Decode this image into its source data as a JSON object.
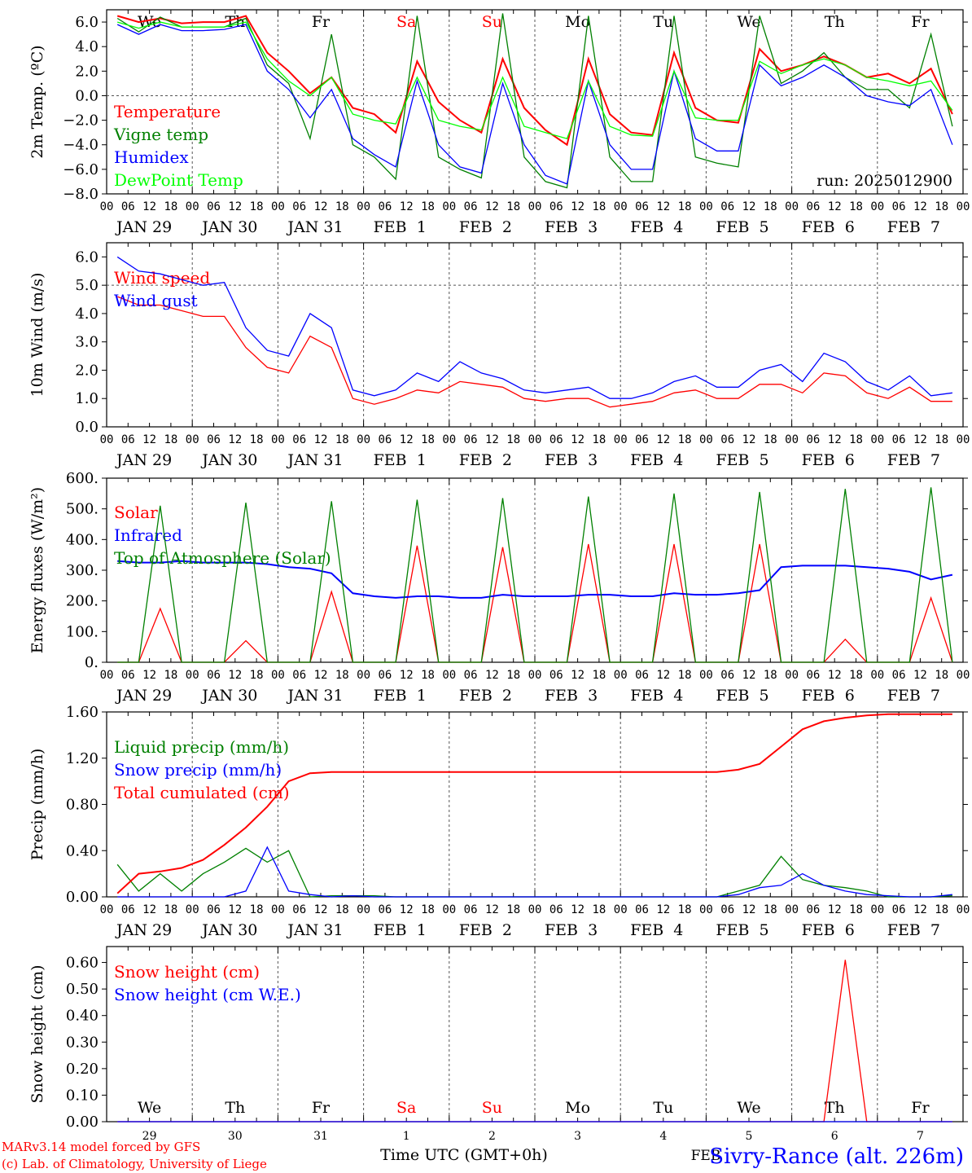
{
  "footer": {
    "model": "MARv3.14 model forced by GFS",
    "lab": "(c) Lab. of Climatology, University of Liege",
    "xlabel": "Time UTC (GMT+0h)",
    "station": "Sivry-Rance (alt. 226m)",
    "month": "FEB"
  },
  "days": [
    "JAN 29",
    "JAN 30",
    "JAN 31",
    "FEB  1",
    "FEB  2",
    "FEB  3",
    "FEB  4",
    "FEB  5",
    "FEB  6",
    "FEB  7"
  ],
  "weekdays": [
    "We",
    "Th",
    "Fr",
    "Sa",
    "Su",
    "Mo",
    "Tu",
    "We",
    "Th",
    "Fr"
  ],
  "weekday_colors": [
    "#000000",
    "#000000",
    "#000000",
    "#ff0000",
    "#ff0000",
    "#000000",
    "#000000",
    "#000000",
    "#000000",
    "#000000"
  ],
  "day_numbers": [
    "29",
    "30",
    "31",
    "1",
    "2",
    "3",
    "4",
    "5",
    "6",
    "7"
  ],
  "hour_ticks": [
    "00",
    "06",
    "12",
    "18"
  ],
  "end_tick": "00",
  "chart_data": [
    {
      "type": "line",
      "ylabel": "2m Temp. (ºC)",
      "ylim": [
        -8,
        7
      ],
      "yticks": [
        "6.0",
        "4.0",
        "2.0",
        "0.0",
        "−2.0",
        "−4.0",
        "−6.0",
        "−8.0"
      ],
      "annotation": "run: 2025012900",
      "time_step_hours": 6,
      "series": [
        {
          "name": "Temperature",
          "color": "#ff0000",
          "values": [
            6.5,
            6.0,
            6.3,
            5.9,
            6.0,
            6.0,
            6.5,
            3.5,
            2.0,
            0.2,
            1.5,
            -1.0,
            -1.5,
            -3.0,
            2.8,
            -0.5,
            -2.0,
            -3.0,
            3.0,
            -1.0,
            -2.8,
            -4.0,
            3.0,
            -1.5,
            -3.0,
            -3.2,
            3.5,
            -1.0,
            -2.0,
            -2.2,
            3.8,
            2.0,
            2.5,
            3.2,
            2.5,
            1.5,
            1.8,
            1.0,
            2.2,
            -1.5
          ]
        },
        {
          "name": "Vigne temp",
          "color": "#008000",
          "values": [
            6.3,
            5.2,
            6.4,
            5.6,
            5.6,
            5.6,
            6.3,
            2.5,
            1.0,
            -3.5,
            5.0,
            -4.0,
            -5.0,
            -6.8,
            6.5,
            -5.0,
            -6.0,
            -6.7,
            6.7,
            -5.0,
            -7.0,
            -7.5,
            6.5,
            -5.0,
            -7.0,
            -7.0,
            6.5,
            -5.0,
            -5.5,
            -5.8,
            6.5,
            1.0,
            2.0,
            3.5,
            1.5,
            0.5,
            0.5,
            -1.0,
            5.0,
            -2.5
          ]
        },
        {
          "name": "Humidex",
          "color": "#0000ff",
          "values": [
            5.8,
            5.0,
            5.8,
            5.3,
            5.3,
            5.4,
            5.8,
            2.0,
            0.5,
            -1.8,
            0.5,
            -3.5,
            -4.8,
            -5.8,
            1.2,
            -4.0,
            -5.8,
            -6.3,
            1.0,
            -4.0,
            -6.5,
            -7.2,
            1.2,
            -4.0,
            -6.0,
            -6.0,
            2.0,
            -3.5,
            -4.5,
            -4.5,
            2.5,
            0.8,
            1.5,
            2.5,
            1.5,
            0.0,
            -0.5,
            -0.8,
            0.5,
            -4.0
          ]
        },
        {
          "name": "DewPoint Temp",
          "color": "#00ff00",
          "values": [
            6.0,
            5.5,
            6.0,
            5.6,
            5.6,
            5.6,
            6.0,
            3.0,
            1.2,
            0.0,
            1.5,
            -1.5,
            -2.0,
            -2.3,
            1.5,
            -2.0,
            -2.5,
            -2.8,
            1.5,
            -2.5,
            -3.0,
            -3.5,
            1.2,
            -2.5,
            -3.2,
            -3.3,
            2.0,
            -1.8,
            -2.0,
            -2.0,
            2.8,
            1.8,
            2.5,
            3.0,
            2.5,
            1.5,
            1.2,
            0.8,
            1.2,
            -1.2
          ]
        }
      ]
    },
    {
      "type": "line",
      "ylabel": "10m Wind (m/s)",
      "ylim": [
        0,
        6.5
      ],
      "yticks": [
        "6.0",
        "5.0",
        "4.0",
        "3.0",
        "2.0",
        "1.0",
        "0.0"
      ],
      "time_step_hours": 6,
      "series": [
        {
          "name": "Wind speed",
          "color": "#ff0000",
          "values": [
            4.6,
            4.3,
            4.3,
            4.1,
            3.9,
            3.9,
            2.8,
            2.1,
            1.9,
            3.2,
            2.8,
            1.0,
            0.8,
            1.0,
            1.3,
            1.2,
            1.6,
            1.5,
            1.4,
            1.0,
            0.9,
            1.0,
            1.0,
            0.7,
            0.8,
            0.9,
            1.2,
            1.3,
            1.0,
            1.0,
            1.5,
            1.5,
            1.2,
            1.9,
            1.8,
            1.2,
            1.0,
            1.4,
            0.9,
            0.9
          ]
        },
        {
          "name": "Wind gust",
          "color": "#0000ff",
          "values": [
            6.0,
            5.5,
            5.4,
            5.2,
            5.0,
            5.1,
            3.5,
            2.7,
            2.5,
            4.0,
            3.5,
            1.3,
            1.1,
            1.3,
            1.9,
            1.6,
            2.3,
            1.9,
            1.7,
            1.3,
            1.2,
            1.3,
            1.4,
            1.0,
            1.0,
            1.2,
            1.6,
            1.8,
            1.4,
            1.4,
            2.0,
            2.2,
            1.6,
            2.6,
            2.3,
            1.6,
            1.3,
            1.8,
            1.1,
            1.2
          ]
        }
      ]
    },
    {
      "type": "line",
      "ylabel": "Energy fluxes (W/m²)",
      "ylim": [
        0,
        600
      ],
      "yticks": [
        "600.",
        "500.",
        "400.",
        "300.",
        "200.",
        "100.",
        "0."
      ],
      "time_step_hours": 6,
      "series": [
        {
          "name": "Solar",
          "color": "#ff0000",
          "values": [
            0,
            0,
            175,
            0,
            0,
            0,
            70,
            0,
            0,
            0,
            230,
            0,
            0,
            0,
            380,
            0,
            0,
            0,
            375,
            0,
            0,
            0,
            385,
            0,
            0,
            0,
            385,
            0,
            0,
            0,
            385,
            0,
            0,
            0,
            75,
            0,
            0,
            0,
            210,
            0
          ]
        },
        {
          "name": "Infrared",
          "color": "#0000ff",
          "values": [
            330,
            325,
            325,
            330,
            325,
            325,
            325,
            320,
            310,
            305,
            290,
            225,
            215,
            210,
            215,
            215,
            210,
            210,
            220,
            215,
            215,
            215,
            220,
            220,
            215,
            215,
            225,
            220,
            220,
            225,
            235,
            310,
            315,
            315,
            315,
            310,
            305,
            295,
            270,
            285
          ]
        },
        {
          "name": "Top of Atmosphere (Solar)",
          "color": "#008000",
          "values": [
            0,
            0,
            510,
            0,
            0,
            0,
            520,
            0,
            0,
            0,
            525,
            0,
            0,
            0,
            530,
            0,
            0,
            0,
            535,
            0,
            0,
            0,
            540,
            0,
            0,
            0,
            550,
            0,
            0,
            0,
            555,
            0,
            0,
            0,
            565,
            0,
            0,
            0,
            570,
            0
          ]
        }
      ]
    },
    {
      "type": "line",
      "ylabel": "Precip (mm/h)",
      "ylim": [
        0,
        1.6
      ],
      "yticks": [
        "1.60",
        "1.20",
        "0.80",
        "0.40",
        "0.00"
      ],
      "time_step_hours": 6,
      "series": [
        {
          "name": "Liquid precip (mm/h)",
          "color": "#008000",
          "values": [
            0.28,
            0.05,
            0.2,
            0.05,
            0.2,
            0.3,
            0.42,
            0.3,
            0.4,
            0.0,
            0.01,
            0.01,
            0.01,
            0.0,
            0.0,
            0.0,
            0.0,
            0.0,
            0.0,
            0.0,
            0.0,
            0.0,
            0.0,
            0.0,
            0.0,
            0.0,
            0.0,
            0.0,
            0.0,
            0.05,
            0.1,
            0.35,
            0.15,
            0.1,
            0.08,
            0.05,
            0.0,
            0.0,
            0.0,
            0.01
          ]
        },
        {
          "name": "Snow precip (mm/h)",
          "color": "#0000ff",
          "values": [
            0.0,
            0.0,
            0.0,
            0.0,
            0.0,
            0.0,
            0.05,
            0.43,
            0.05,
            0.02,
            0.0,
            0.01,
            0.0,
            0.0,
            0.0,
            0.0,
            0.0,
            0.0,
            0.0,
            0.0,
            0.0,
            0.0,
            0.0,
            0.0,
            0.0,
            0.0,
            0.0,
            0.0,
            0.0,
            0.02,
            0.08,
            0.1,
            0.2,
            0.1,
            0.05,
            0.02,
            0.01,
            0.0,
            0.0,
            0.02
          ]
        },
        {
          "name": "Total cumulated (cm)",
          "color": "#ff0000",
          "values": [
            0.03,
            0.2,
            0.22,
            0.25,
            0.32,
            0.45,
            0.6,
            0.78,
            1.0,
            1.07,
            1.08,
            1.08,
            1.08,
            1.08,
            1.08,
            1.08,
            1.08,
            1.08,
            1.08,
            1.08,
            1.08,
            1.08,
            1.08,
            1.08,
            1.08,
            1.08,
            1.08,
            1.08,
            1.08,
            1.1,
            1.15,
            1.3,
            1.45,
            1.52,
            1.55,
            1.57,
            1.58,
            1.58,
            1.58,
            1.58
          ]
        }
      ]
    },
    {
      "type": "line",
      "ylabel": "Snow height (cm)",
      "ylim": [
        0,
        0.66
      ],
      "yticks": [
        "0.60",
        "0.50",
        "0.40",
        "0.30",
        "0.20",
        "0.10",
        "0.00"
      ],
      "time_step_hours": 6,
      "series": [
        {
          "name": "Snow height (cm)",
          "color": "#ff0000",
          "values": [
            0,
            0,
            0,
            0,
            0,
            0,
            0,
            0,
            0,
            0,
            0,
            0,
            0,
            0,
            0,
            0,
            0,
            0,
            0,
            0,
            0,
            0,
            0,
            0,
            0,
            0,
            0,
            0,
            0,
            0,
            0,
            0,
            0,
            0,
            0.61,
            0,
            0,
            0,
            0,
            0
          ]
        },
        {
          "name": "Snow height (cm W.E.)",
          "color": "#0000ff",
          "values": [
            0,
            0,
            0,
            0,
            0,
            0,
            0,
            0,
            0,
            0,
            0,
            0,
            0,
            0,
            0,
            0,
            0,
            0,
            0,
            0,
            0,
            0,
            0,
            0,
            0,
            0,
            0,
            0,
            0,
            0,
            0,
            0,
            0,
            0,
            0,
            0,
            0,
            0,
            0,
            0
          ]
        }
      ]
    }
  ]
}
